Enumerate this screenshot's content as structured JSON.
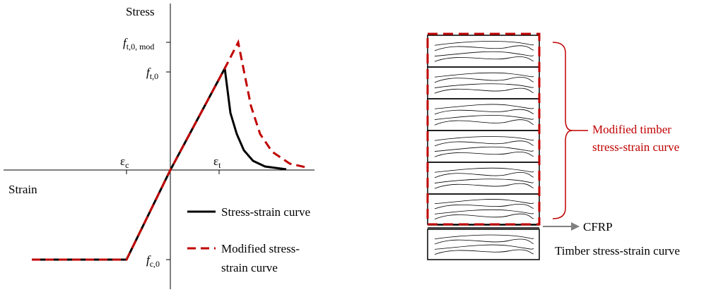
{
  "left_plot": {
    "y_axis_label": "Stress",
    "x_axis_label": "Strain",
    "y_ticks": [
      {
        "symbol": "f",
        "subscript": "t,0, mod"
      },
      {
        "symbol": "f",
        "subscript": "t,0"
      },
      {
        "symbol": "f",
        "subscript": "c,0"
      }
    ],
    "x_ticks": [
      {
        "symbol": "ε",
        "subscript": "c"
      },
      {
        "symbol": "ε",
        "subscript": "t"
      }
    ],
    "legend": [
      {
        "lines": [
          "Stress-strain curve"
        ]
      },
      {
        "lines": [
          "Modified stress-",
          "strain curve"
        ]
      }
    ]
  },
  "right_diagram": {
    "brace_label": {
      "lines": [
        "Modified timber",
        "stress-strain curve"
      ]
    },
    "arrow_label": "CFRP",
    "caption": "Timber stress-strain curve"
  }
}
